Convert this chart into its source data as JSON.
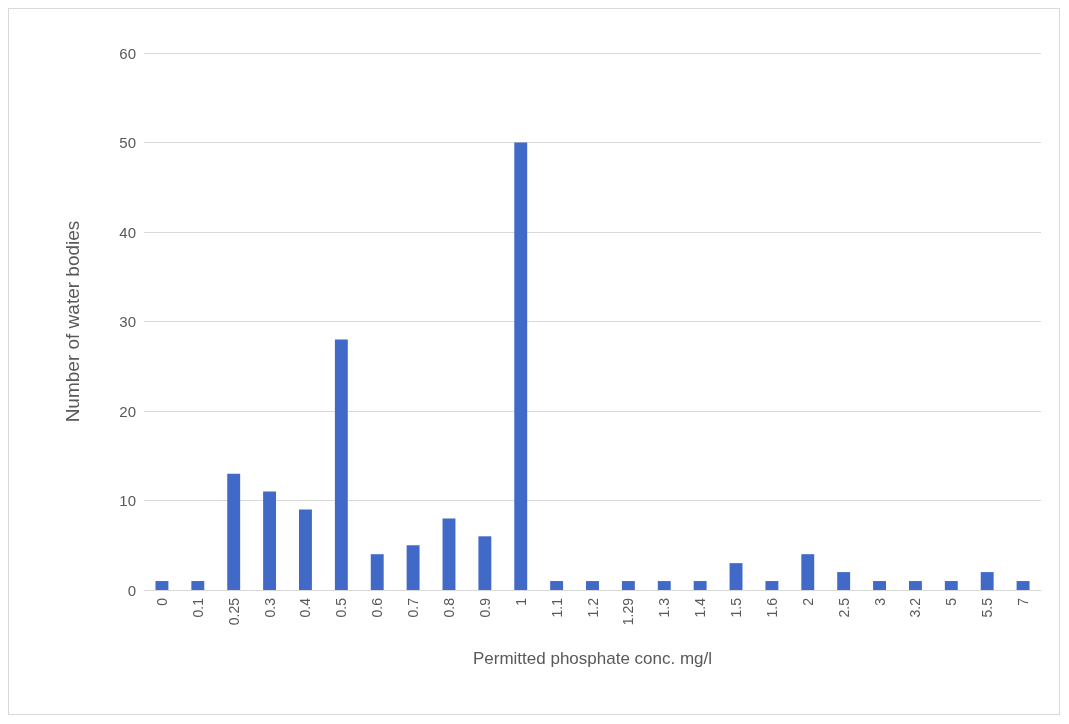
{
  "chart_data": {
    "type": "bar",
    "xlabel": "Permitted phosphate conc. mg/l",
    "ylabel": "Number of water bodies",
    "categories": [
      "0",
      "0.1",
      "0.25",
      "0.3",
      "0.4",
      "0.5",
      "0.6",
      "0.7",
      "0.8",
      "0.9",
      "1",
      "1.1",
      "1.2",
      "1.29",
      "1.3",
      "1.4",
      "1.5",
      "1.6",
      "2",
      "2.5",
      "3",
      "3.2",
      "5",
      "5.5",
      "7"
    ],
    "values": [
      1,
      1,
      13,
      11,
      9,
      28,
      4,
      5,
      8,
      6,
      50,
      1,
      1,
      1,
      1,
      1,
      3,
      1,
      4,
      2,
      1,
      1,
      1,
      2,
      1
    ],
    "color": "#4169c8",
    "ylim": [
      0,
      60
    ],
    "yticks": [
      0,
      10,
      20,
      30,
      40,
      50,
      60
    ],
    "grid": "y"
  }
}
